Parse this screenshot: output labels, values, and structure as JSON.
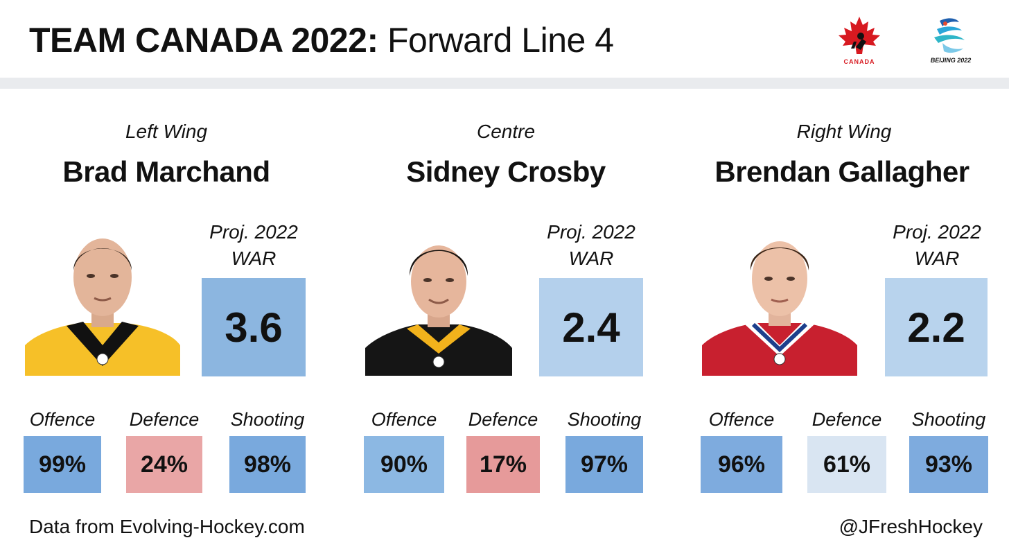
{
  "header": {
    "title_bold": "TEAM CANADA 2022:",
    "title_light": "Forward Line 4",
    "logo_canada_text": "CANADA",
    "logo_beijing_text": "BEIJING 2022"
  },
  "players": [
    {
      "position": "Left Wing",
      "name": "Brad Marchand",
      "war_label_1": "Proj. 2022",
      "war_label_2": "WAR",
      "war": "3.6",
      "war_color": "#8cb6e0",
      "stats": [
        {
          "label": "Offence",
          "value": "99%",
          "color": "#79a9dd"
        },
        {
          "label": "Defence",
          "value": "24%",
          "color": "#e9a6a6"
        },
        {
          "label": "Shooting",
          "value": "98%",
          "color": "#79a9dd"
        }
      ]
    },
    {
      "position": "Centre",
      "name": "Sidney Crosby",
      "war_label_1": "Proj. 2022",
      "war_label_2": "WAR",
      "war": "2.4",
      "war_color": "#b4d0ec",
      "stats": [
        {
          "label": "Offence",
          "value": "90%",
          "color": "#8cb8e3"
        },
        {
          "label": "Defence",
          "value": "17%",
          "color": "#e69a9a"
        },
        {
          "label": "Shooting",
          "value": "97%",
          "color": "#79a9dd"
        }
      ]
    },
    {
      "position": "Right Wing",
      "name": "Brendan Gallagher",
      "war_label_1": "Proj. 2022",
      "war_label_2": "WAR",
      "war": "2.2",
      "war_color": "#b8d3ed",
      "stats": [
        {
          "label": "Offence",
          "value": "96%",
          "color": "#7eabde"
        },
        {
          "label": "Defence",
          "value": "61%",
          "color": "#d9e5f2"
        },
        {
          "label": "Shooting",
          "value": "93%",
          "color": "#7eabde"
        }
      ]
    }
  ],
  "footer": {
    "source": "Data from Evolving-Hockey.com",
    "handle": "@JFreshHockey"
  }
}
